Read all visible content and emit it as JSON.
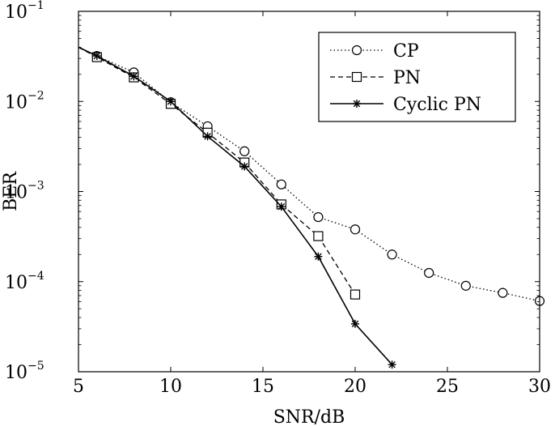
{
  "chart_data": {
    "type": "line",
    "title": "",
    "xlabel": "SNR/dB",
    "ylabel": "BER",
    "xlim": [
      5,
      30
    ],
    "ylim": [
      1e-05,
      0.1
    ],
    "yscale": "log",
    "grid": false,
    "legend_position": "top-right",
    "xticks": [
      5,
      10,
      15,
      20,
      25,
      30
    ],
    "xtick_labels": [
      "5",
      "10",
      "15",
      "20",
      "25",
      "30"
    ],
    "yticks": [
      {
        "value": 0.1,
        "base": "10",
        "exp": "−1"
      },
      {
        "value": 0.01,
        "base": "10",
        "exp": "−2"
      },
      {
        "value": 0.001,
        "base": "10",
        "exp": "−3"
      },
      {
        "value": 0.0001,
        "base": "10",
        "exp": "−4"
      },
      {
        "value": 1e-05,
        "base": "10",
        "exp": "−5"
      }
    ],
    "series": [
      {
        "name": "CP",
        "line_style": "dotted",
        "marker": "circle",
        "x": [
          5,
          6,
          8,
          10,
          12,
          14,
          16,
          18,
          20,
          22,
          24,
          26,
          28,
          30
        ],
        "y": [
          0.04,
          0.032,
          0.021,
          0.0098,
          0.0053,
          0.0028,
          0.0012,
          0.00052,
          0.00038,
          0.0002,
          0.000125,
          9e-05,
          7.5e-05,
          6.1e-05
        ],
        "marker_x": [
          6,
          8,
          10,
          12,
          14,
          16,
          18,
          20,
          22,
          24,
          26,
          28,
          30
        ]
      },
      {
        "name": "PN",
        "line_style": "dashed",
        "marker": "square",
        "x": [
          5,
          6,
          8,
          10,
          12,
          14,
          16,
          18,
          20
        ],
        "y": [
          0.04,
          0.031,
          0.0185,
          0.0094,
          0.0045,
          0.0021,
          0.00072,
          0.00032,
          7.2e-05
        ],
        "marker_x": [
          6,
          8,
          10,
          12,
          14,
          16,
          18,
          20
        ]
      },
      {
        "name": "Cyclic PN",
        "line_style": "solid",
        "marker": "asterisk",
        "x": [
          5,
          6,
          8,
          10,
          12,
          14,
          16,
          18,
          20,
          22
        ],
        "y": [
          0.04,
          0.032,
          0.019,
          0.01,
          0.0041,
          0.0019,
          0.00068,
          0.00019,
          3.4e-05,
          1.2e-05
        ],
        "marker_x": [
          6,
          8,
          10,
          12,
          14,
          16,
          18,
          20,
          22
        ]
      }
    ]
  }
}
